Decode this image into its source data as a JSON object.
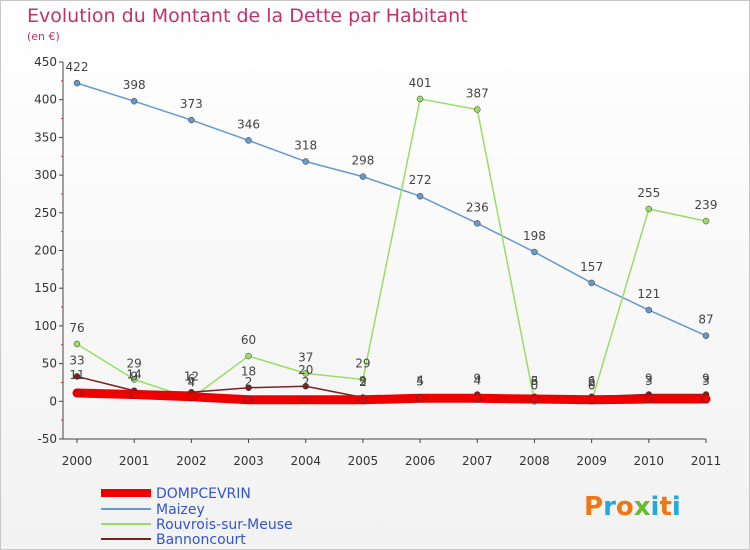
{
  "title": "Evolution du Montant de la Dette par Habitant",
  "unit": "(en €)",
  "logo_text": "Proxiti",
  "chart_data": {
    "type": "line",
    "title": "Evolution du Montant de la Dette par Habitant",
    "subtitle": "(en €)",
    "x": [
      "2000",
      "2001",
      "2002",
      "2003",
      "2004",
      "2005",
      "2006",
      "2007",
      "2008",
      "2009",
      "2010",
      "2011"
    ],
    "ylim": [
      -50,
      450
    ],
    "yticks": [
      -50,
      0,
      50,
      100,
      150,
      200,
      250,
      300,
      350,
      400,
      450
    ],
    "grid": false,
    "legend_position": "bottom-left",
    "series": [
      {
        "name": "DOMPCEVRIN",
        "color": "#ee0000",
        "values": [
          11,
          9,
          6,
          2,
          2,
          2,
          4,
          4,
          3,
          2,
          3,
          3
        ],
        "labels": [
          "11",
          "9",
          "6",
          "2",
          "2",
          "2",
          "4",
          "4",
          "3",
          "2",
          "3",
          "3"
        ]
      },
      {
        "name": "Maizey",
        "color": "#6699cc",
        "values": [
          422,
          398,
          373,
          346,
          318,
          298,
          272,
          236,
          198,
          157,
          121,
          87
        ],
        "labels": [
          "422",
          "398",
          "373",
          "346",
          "318",
          "298",
          "272",
          "236",
          "198",
          "157",
          "121",
          "87"
        ]
      },
      {
        "name": "Rouvrois-sur-Meuse",
        "color": "#99dd66",
        "values": [
          76,
          29,
          4,
          60,
          37,
          29,
          401,
          387,
          0,
          0,
          255,
          239
        ],
        "labels": [
          "76",
          "29",
          "4",
          "60",
          "37",
          "29",
          "401",
          "387",
          "0",
          "0",
          "255",
          "239"
        ]
      },
      {
        "name": "Bannoncourt",
        "color": "#772222",
        "values": [
          33,
          14,
          12,
          18,
          20,
          5,
          5,
          9,
          6,
          6,
          9,
          9
        ],
        "labels": [
          "33",
          "14",
          "12",
          "18",
          "20",
          "5",
          "5",
          "9",
          "6",
          "6",
          "9",
          "9"
        ]
      }
    ]
  }
}
